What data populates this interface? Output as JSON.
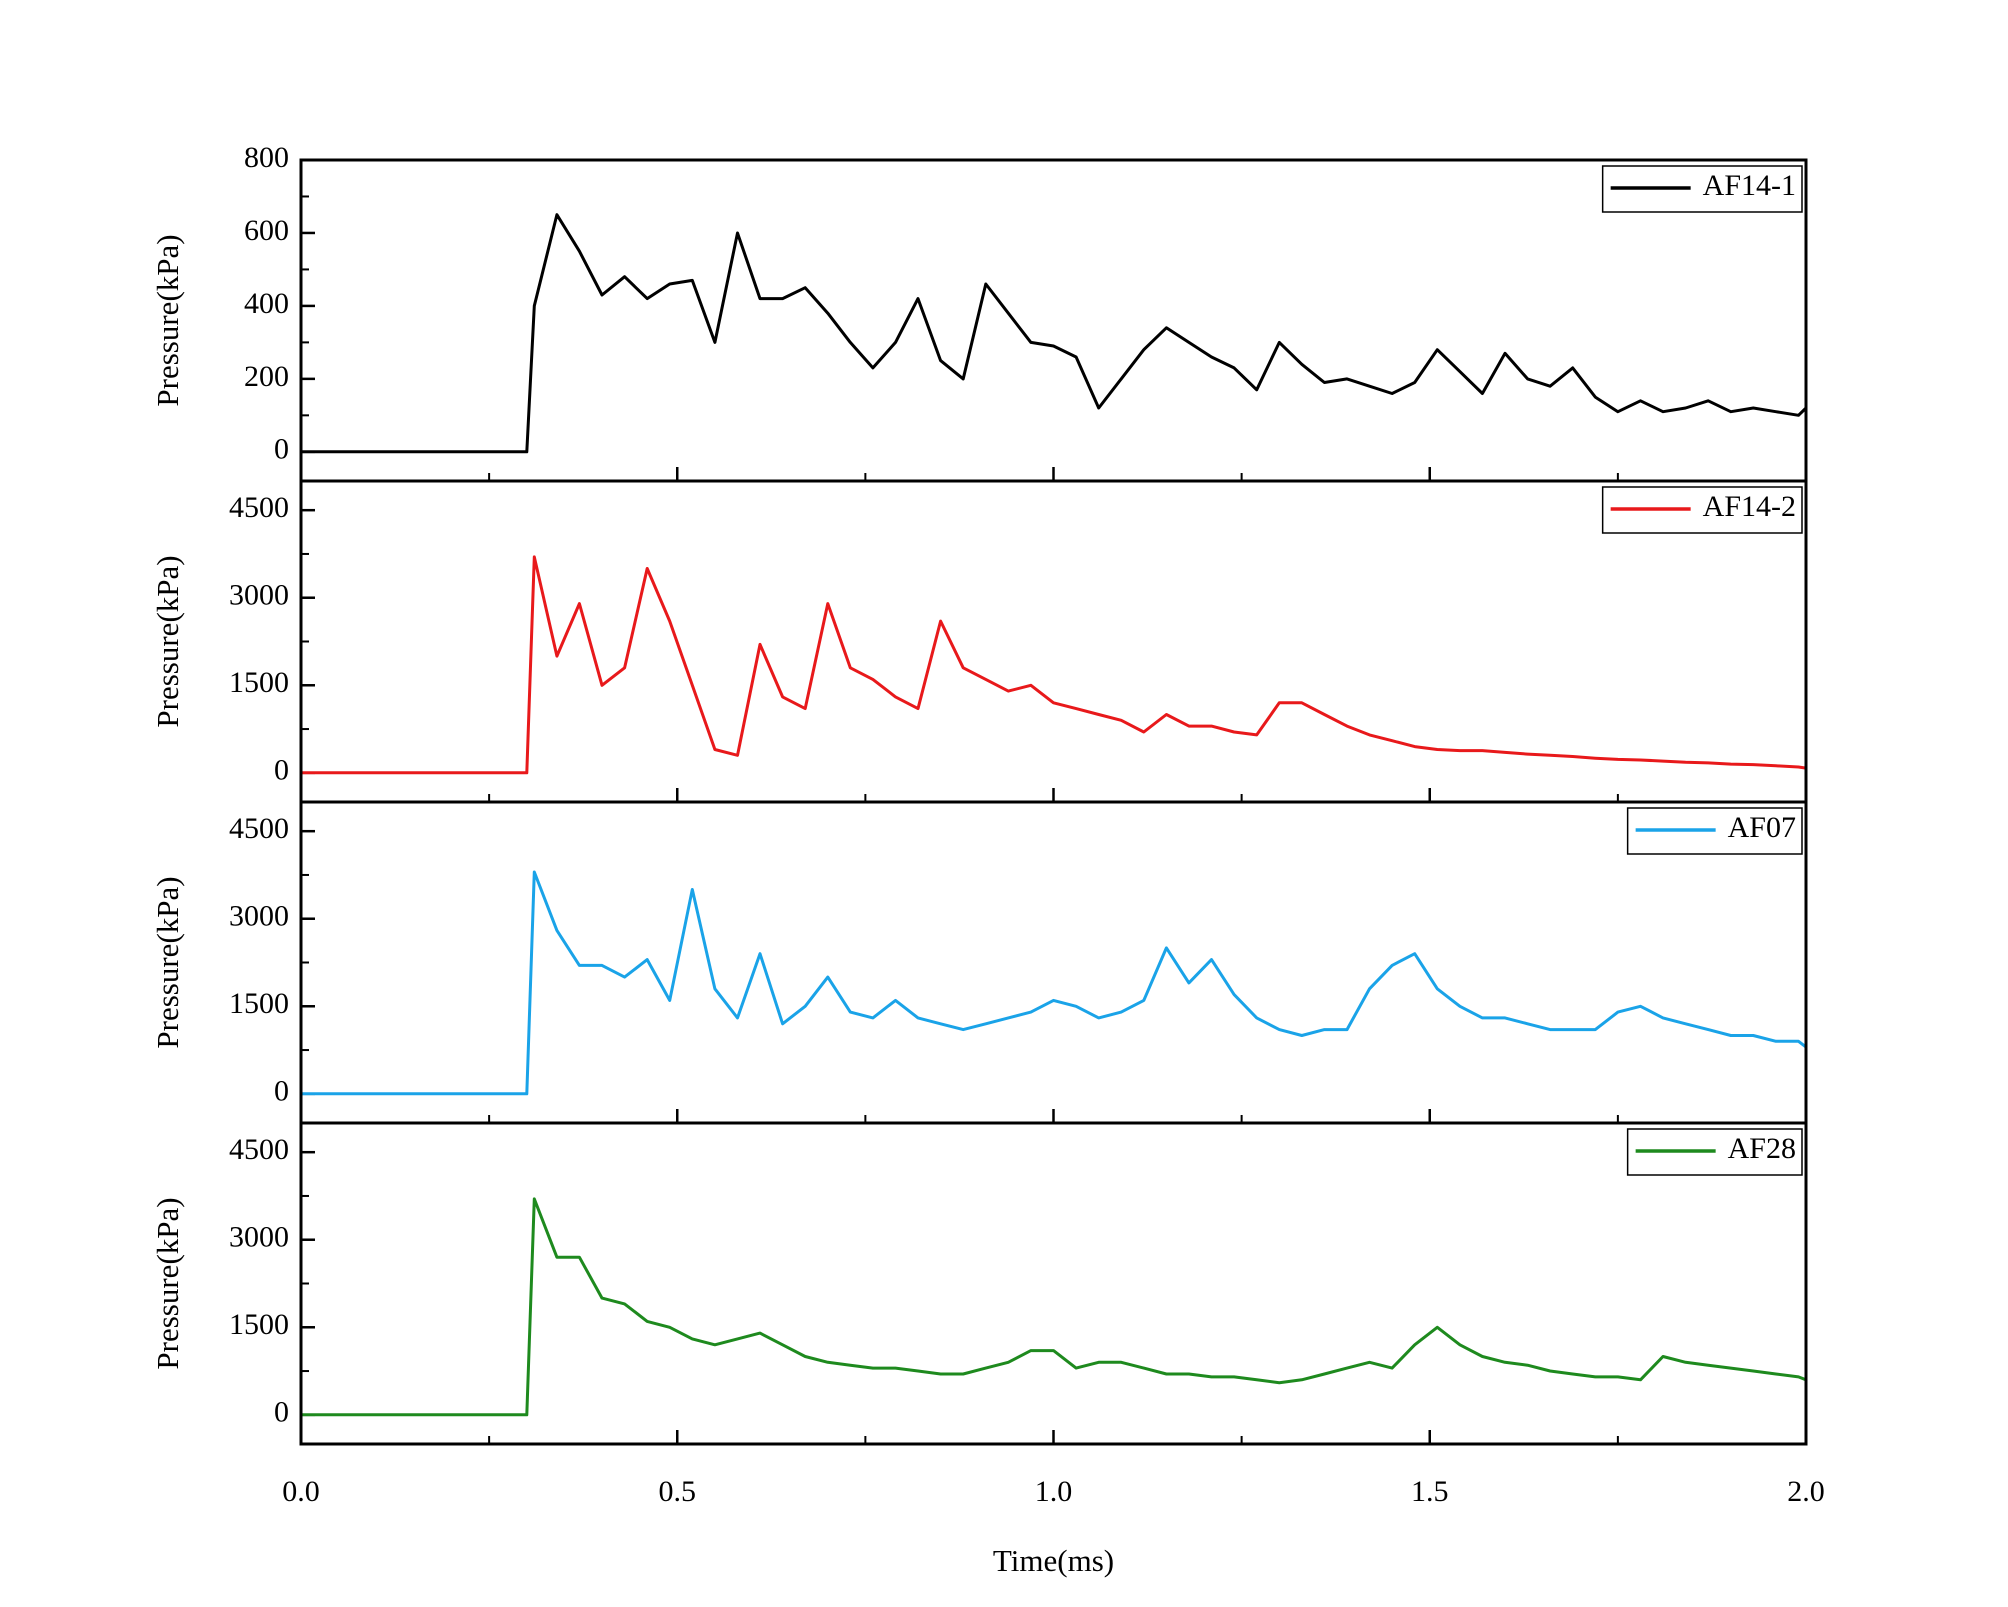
{
  "chart_data": [
    {
      "type": "line",
      "y_label": "Pressure(kPa)",
      "ylim": [
        -80,
        800
      ],
      "yticks": [
        0,
        200,
        400,
        600,
        800
      ],
      "x": [
        0,
        0.3,
        0.31,
        0.34,
        0.37,
        0.4,
        0.43,
        0.46,
        0.49,
        0.52,
        0.55,
        0.58,
        0.61,
        0.64,
        0.67,
        0.7,
        0.73,
        0.76,
        0.79,
        0.82,
        0.85,
        0.88,
        0.91,
        0.94,
        0.97,
        1.0,
        1.03,
        1.06,
        1.09,
        1.12,
        1.15,
        1.18,
        1.21,
        1.24,
        1.27,
        1.3,
        1.33,
        1.36,
        1.39,
        1.42,
        1.45,
        1.48,
        1.51,
        1.54,
        1.57,
        1.6,
        1.63,
        1.66,
        1.69,
        1.72,
        1.75,
        1.78,
        1.81,
        1.84,
        1.87,
        1.9,
        1.93,
        1.96,
        1.99,
        2.0
      ],
      "series": [
        {
          "name": "AF14-1",
          "color": "#000000",
          "values": [
            0,
            0,
            400,
            650,
            550,
            430,
            480,
            420,
            460,
            470,
            300,
            600,
            420,
            420,
            450,
            380,
            300,
            230,
            300,
            420,
            250,
            200,
            460,
            380,
            300,
            290,
            260,
            120,
            200,
            280,
            340,
            300,
            260,
            230,
            170,
            300,
            240,
            190,
            200,
            180,
            160,
            190,
            280,
            220,
            160,
            270,
            200,
            180,
            230,
            150,
            110,
            140,
            110,
            120,
            140,
            110,
            120,
            110,
            100,
            120
          ]
        }
      ]
    },
    {
      "type": "line",
      "y_label": "Pressure(kPa)",
      "ylim": [
        -500,
        5000
      ],
      "yticks": [
        0,
        1500,
        3000,
        4500
      ],
      "x": [
        0,
        0.3,
        0.31,
        0.34,
        0.37,
        0.4,
        0.43,
        0.46,
        0.49,
        0.52,
        0.55,
        0.58,
        0.61,
        0.64,
        0.67,
        0.7,
        0.73,
        0.76,
        0.79,
        0.82,
        0.85,
        0.88,
        0.91,
        0.94,
        0.97,
        1.0,
        1.03,
        1.06,
        1.09,
        1.12,
        1.15,
        1.18,
        1.21,
        1.24,
        1.27,
        1.3,
        1.33,
        1.36,
        1.39,
        1.42,
        1.45,
        1.48,
        1.51,
        1.54,
        1.57,
        1.6,
        1.63,
        1.66,
        1.69,
        1.72,
        1.75,
        1.78,
        1.81,
        1.84,
        1.87,
        1.9,
        1.93,
        1.96,
        1.99,
        2.0
      ],
      "series": [
        {
          "name": "AF14-2",
          "color": "#e8191b",
          "values": [
            0,
            0,
            3700,
            2000,
            2900,
            1500,
            1800,
            3500,
            2600,
            1500,
            400,
            300,
            2200,
            1300,
            1100,
            2900,
            1800,
            1600,
            1300,
            1100,
            2600,
            1800,
            1600,
            1400,
            1500,
            1200,
            1100,
            1000,
            900,
            700,
            1000,
            800,
            800,
            700,
            650,
            1200,
            1200,
            1000,
            800,
            650,
            550,
            450,
            400,
            380,
            380,
            350,
            320,
            300,
            280,
            250,
            230,
            220,
            200,
            180,
            170,
            150,
            140,
            120,
            100,
            80
          ]
        }
      ]
    },
    {
      "type": "line",
      "y_label": "Pressure(kPa)",
      "ylim": [
        -500,
        5000
      ],
      "yticks": [
        0,
        1500,
        3000,
        4500
      ],
      "x": [
        0,
        0.3,
        0.31,
        0.34,
        0.37,
        0.4,
        0.43,
        0.46,
        0.49,
        0.52,
        0.55,
        0.58,
        0.61,
        0.64,
        0.67,
        0.7,
        0.73,
        0.76,
        0.79,
        0.82,
        0.85,
        0.88,
        0.91,
        0.94,
        0.97,
        1.0,
        1.03,
        1.06,
        1.09,
        1.12,
        1.15,
        1.18,
        1.21,
        1.24,
        1.27,
        1.3,
        1.33,
        1.36,
        1.39,
        1.42,
        1.45,
        1.48,
        1.51,
        1.54,
        1.57,
        1.6,
        1.63,
        1.66,
        1.69,
        1.72,
        1.75,
        1.78,
        1.81,
        1.84,
        1.87,
        1.9,
        1.93,
        1.96,
        1.99,
        2.0
      ],
      "series": [
        {
          "name": "AF07",
          "color": "#1aa3e8",
          "values": [
            0,
            0,
            3800,
            2800,
            2200,
            2200,
            2000,
            2300,
            1600,
            3500,
            1800,
            1300,
            2400,
            1200,
            1500,
            2000,
            1400,
            1300,
            1600,
            1300,
            1200,
            1100,
            1200,
            1300,
            1400,
            1600,
            1500,
            1300,
            1400,
            1600,
            2500,
            1900,
            2300,
            1700,
            1300,
            1100,
            1000,
            1100,
            1100,
            1800,
            2200,
            2400,
            1800,
            1500,
            1300,
            1300,
            1200,
            1100,
            1100,
            1100,
            1400,
            1500,
            1300,
            1200,
            1100,
            1000,
            1000,
            900,
            900,
            800
          ]
        }
      ]
    },
    {
      "type": "line",
      "y_label": "Pressure(kPa)",
      "ylim": [
        -500,
        5000
      ],
      "yticks": [
        0,
        1500,
        3000,
        4500
      ],
      "x_label": "Time(ms)",
      "xlim": [
        0,
        2
      ],
      "xticks": [
        {
          "value": 0,
          "label": "0.0"
        },
        {
          "value": 0.5,
          "label": "0.5"
        },
        {
          "value": 1,
          "label": "1.0"
        },
        {
          "value": 1.5,
          "label": "1.5"
        },
        {
          "value": 2,
          "label": "2.0"
        }
      ],
      "x": [
        0,
        0.3,
        0.31,
        0.34,
        0.37,
        0.4,
        0.43,
        0.46,
        0.49,
        0.52,
        0.55,
        0.58,
        0.61,
        0.64,
        0.67,
        0.7,
        0.73,
        0.76,
        0.79,
        0.82,
        0.85,
        0.88,
        0.91,
        0.94,
        0.97,
        1.0,
        1.03,
        1.06,
        1.09,
        1.12,
        1.15,
        1.18,
        1.21,
        1.24,
        1.27,
        1.3,
        1.33,
        1.36,
        1.39,
        1.42,
        1.45,
        1.48,
        1.51,
        1.54,
        1.57,
        1.6,
        1.63,
        1.66,
        1.69,
        1.72,
        1.75,
        1.78,
        1.81,
        1.84,
        1.87,
        1.9,
        1.93,
        1.96,
        1.99,
        2.0
      ],
      "series": [
        {
          "name": "AF28",
          "color": "#1e8a1e",
          "values": [
            0,
            0,
            3700,
            2700,
            2700,
            2000,
            1900,
            1600,
            1500,
            1300,
            1200,
            1300,
            1400,
            1200,
            1000,
            900,
            850,
            800,
            800,
            750,
            700,
            700,
            800,
            900,
            1100,
            1100,
            800,
            900,
            900,
            800,
            700,
            700,
            650,
            650,
            600,
            550,
            600,
            700,
            800,
            900,
            800,
            1200,
            1500,
            1200,
            1000,
            900,
            850,
            750,
            700,
            650,
            650,
            600,
            1000,
            900,
            850,
            800,
            750,
            700,
            650,
            600
          ]
        }
      ]
    }
  ]
}
